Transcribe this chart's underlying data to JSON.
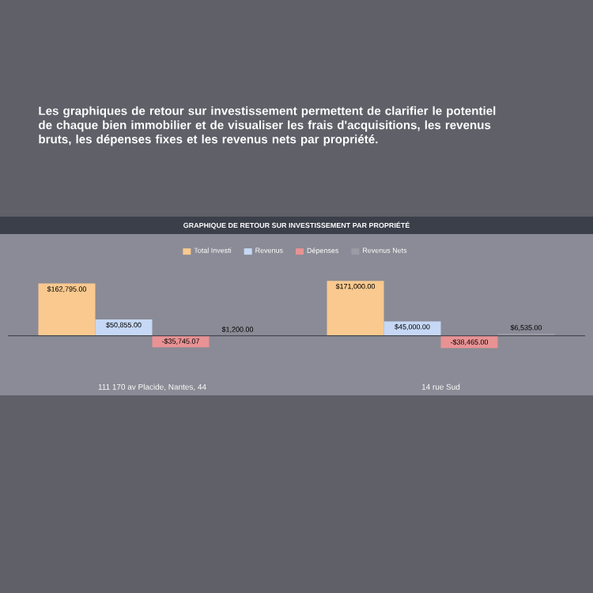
{
  "chart_data": {
    "type": "bar",
    "title": "GRAPHIQUE DE RETOUR SUR INVESTISSEMENT PAR PROPRIÉTÉ",
    "annotations": [
      "Les graphiques de retour sur investissement permettent de clarifier le potentiel de chaque bien immobilier et de visualiser les frais d'acquisitions, les revenus bruts, les dépenses fixes et les revenus nets par propriété."
    ],
    "categories": [
      "111 170 av Placide, Nantes, 44",
      "14 rue Sud"
    ],
    "tick_labels": "x",
    "legend": "top",
    "series": [
      {
        "name": "Total Investi",
        "color": "#f9c98f",
        "values": [
          162795,
          171000
        ],
        "value_labels": [
          "$162,795.00",
          "$171,000.00"
        ]
      },
      {
        "name": "Revenus",
        "color": "#c6d8f5",
        "values": [
          50855,
          45000
        ],
        "value_labels": [
          "$50,855.00",
          "$45,000.00"
        ]
      },
      {
        "name": "Dépenses",
        "color": "#e89294",
        "values": [
          -35745.07,
          -38465
        ],
        "value_labels": [
          "-$35,745.07",
          "-$38,465.00"
        ]
      },
      {
        "name": "Revenus Nets",
        "color": "#9a9ba5",
        "values": [
          1200,
          6535
        ],
        "value_labels": [
          "$1,200.00",
          "$6,535.00"
        ]
      }
    ]
  }
}
